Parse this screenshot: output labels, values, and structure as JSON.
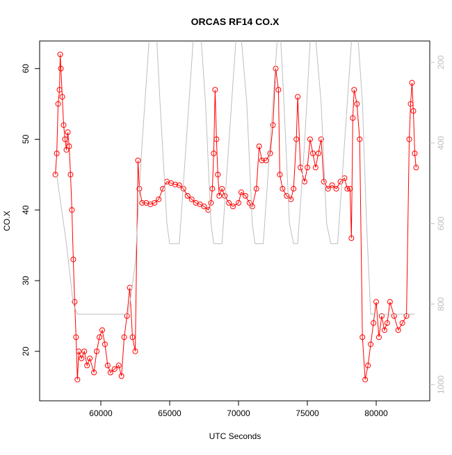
{
  "chart_data": {
    "type": "scatter",
    "title": "ORCAS RF14 CO.X",
    "x_label": "UTC Seconds",
    "y_label": "CO.X",
    "xlim": [
      55556,
      83889
    ],
    "ylim": [
      13.0,
      63.9
    ],
    "y2lim": [
      1040,
      147
    ],
    "xticks": [
      60000,
      65000,
      70000,
      75000,
      80000
    ],
    "yticks": [
      20,
      30,
      40,
      50,
      60
    ],
    "y2ticks": [
      200,
      400,
      600,
      800,
      1000
    ],
    "series": [
      {
        "color": "#ff0000",
        "x": [
          56700,
          56800,
          56900,
          57000,
          57050,
          57100,
          57200,
          57300,
          57400,
          57500,
          57600,
          57700,
          57800,
          57900,
          58000,
          58100,
          58200,
          58300,
          58400,
          58600,
          58800,
          59000,
          59200,
          59500,
          59700,
          59900,
          60100,
          60300,
          60500,
          60700,
          61000,
          61300,
          61500,
          61700,
          61900,
          62100,
          62300,
          62500,
          62700,
          62800,
          63000,
          63300,
          63600,
          63900,
          64200,
          64500,
          64800,
          65100,
          65400,
          65700,
          66000,
          66300,
          66600,
          66900,
          67200,
          67500,
          67800,
          68000,
          68100,
          68200,
          68300,
          68400,
          68500,
          68600,
          68800,
          69000,
          69300,
          69600,
          70000,
          70200,
          70500,
          70800,
          71000,
          71300,
          71500,
          71700,
          72000,
          72300,
          72500,
          72700,
          72900,
          73000,
          73200,
          73500,
          73800,
          74000,
          74200,
          74300,
          74500,
          74800,
          75000,
          75200,
          75400,
          75600,
          75800,
          76000,
          76200,
          76500,
          76800,
          77100,
          77400,
          77700,
          77900,
          78100,
          78200,
          78300,
          78400,
          78600,
          78800,
          79000,
          79200,
          79400,
          79600,
          79800,
          80000,
          80200,
          80400,
          80600,
          80800,
          81000,
          81300,
          81600,
          81900,
          82200,
          82400,
          82500,
          82600,
          82700,
          82800,
          82900
        ],
        "values": [
          45,
          48,
          55,
          57,
          62,
          60,
          56,
          52,
          50,
          48.5,
          51,
          49,
          45,
          40,
          33,
          27,
          22,
          16,
          20,
          19,
          20,
          18,
          19,
          17,
          20,
          22,
          23,
          21,
          18,
          17,
          17.5,
          18,
          16.5,
          22,
          25,
          29,
          22,
          20,
          47,
          43,
          41,
          41,
          40.8,
          41,
          41.5,
          43,
          44,
          43.8,
          43.6,
          43.5,
          43,
          42,
          41.5,
          41,
          40.8,
          40.5,
          40,
          41,
          43,
          48,
          57,
          50,
          45,
          42,
          43,
          42,
          41,
          40.5,
          41,
          42.5,
          42,
          41,
          40.5,
          43,
          49,
          47,
          47,
          48,
          52,
          60,
          57,
          45,
          43,
          42,
          41.5,
          43,
          50,
          56,
          46,
          44,
          46,
          50,
          48,
          46,
          48,
          50,
          44,
          43,
          43.5,
          43,
          44,
          44.5,
          43,
          43,
          36,
          53,
          57,
          55,
          50,
          22,
          16,
          18,
          21,
          24,
          27,
          22,
          25,
          23,
          24,
          27,
          25,
          23,
          24,
          25,
          50,
          55,
          58,
          54,
          48,
          46
        ]
      },
      {
        "color": "#bebebe",
        "axis": "y2",
        "x": [
          56800,
          57500,
          58000,
          58300,
          62000,
          62500,
          63000,
          63500,
          64000,
          64300,
          64800,
          65000,
          65700,
          66200,
          66700,
          67200,
          67600,
          68000,
          68200,
          68800,
          69300,
          69800,
          70100,
          70600,
          71000,
          71200,
          71800,
          72300,
          72800,
          73000,
          73300,
          73700,
          74000,
          74300,
          74800,
          75200,
          75500,
          76000,
          76400,
          76700,
          77200,
          77700,
          78200,
          78600,
          79000,
          79300,
          79600,
          82800
        ],
        "values": [
          480,
          650,
          800,
          825,
          825,
          700,
          400,
          150,
          100,
          300,
          600,
          650,
          650,
          400,
          150,
          100,
          300,
          600,
          650,
          650,
          400,
          150,
          100,
          300,
          600,
          650,
          650,
          400,
          150,
          100,
          300,
          600,
          650,
          650,
          400,
          150,
          100,
          300,
          600,
          650,
          650,
          400,
          150,
          100,
          300,
          600,
          825,
          825
        ]
      }
    ]
  }
}
